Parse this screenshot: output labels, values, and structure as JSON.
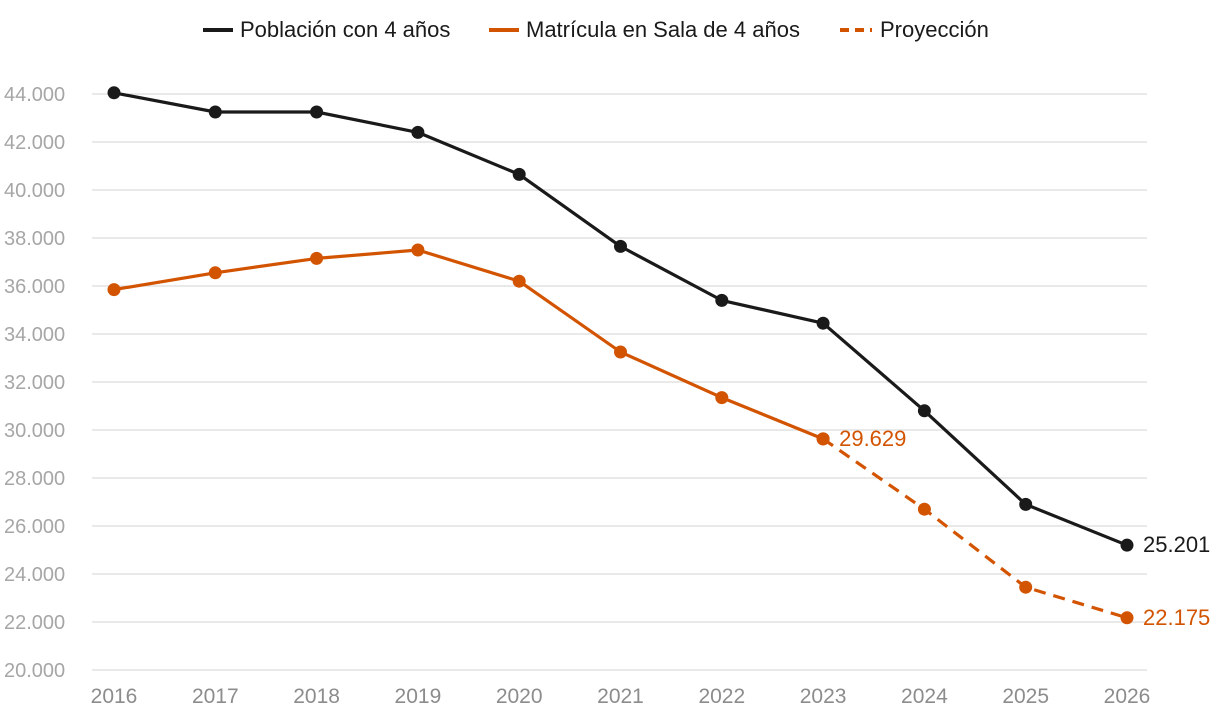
{
  "chart_data": {
    "type": "line",
    "title": "",
    "xlabel": "",
    "ylabel": "",
    "categories": [
      "2016",
      "2017",
      "2018",
      "2019",
      "2020",
      "2021",
      "2022",
      "2023",
      "2024",
      "2025",
      "2026"
    ],
    "y_ticks": [
      "20.000",
      "22.000",
      "24.000",
      "26.000",
      "28.000",
      "30.000",
      "32.000",
      "34.000",
      "36.000",
      "38.000",
      "40.000",
      "42.000",
      "44.000"
    ],
    "ylim": [
      20000,
      44000
    ],
    "grid": true,
    "legend_position": "top",
    "colors": {
      "black": "#1a1a1a",
      "orange": "#d35400",
      "grid": "#dcdcdc"
    },
    "series": [
      {
        "name": "Población con 4 años",
        "style": "solid",
        "color": "#1a1a1a",
        "x": [
          "2016",
          "2017",
          "2018",
          "2019",
          "2020",
          "2021",
          "2022",
          "2023",
          "2024",
          "2025",
          "2026"
        ],
        "values": [
          44050,
          43250,
          43250,
          42400,
          40650,
          37650,
          35400,
          34450,
          30800,
          26900,
          25201
        ]
      },
      {
        "name": "Matrícula en Sala de 4 años",
        "style": "solid",
        "color": "#d35400",
        "x": [
          "2016",
          "2017",
          "2018",
          "2019",
          "2020",
          "2021",
          "2022",
          "2023"
        ],
        "values": [
          35850,
          36550,
          37150,
          37500,
          36200,
          33250,
          31350,
          29629
        ]
      },
      {
        "name": "Proyección",
        "style": "dashed",
        "color": "#d35400",
        "x": [
          "2023",
          "2024",
          "2025",
          "2026"
        ],
        "values": [
          29629,
          26700,
          23450,
          22175
        ]
      }
    ],
    "annotations": [
      {
        "text": "29.629",
        "x": "2023",
        "value": 29629,
        "color": "#d35400"
      },
      {
        "text": "25.201",
        "x": "2026",
        "value": 25201,
        "color": "#1a1a1a"
      },
      {
        "text": "22.175",
        "x": "2026",
        "value": 22175,
        "color": "#d35400"
      }
    ]
  }
}
